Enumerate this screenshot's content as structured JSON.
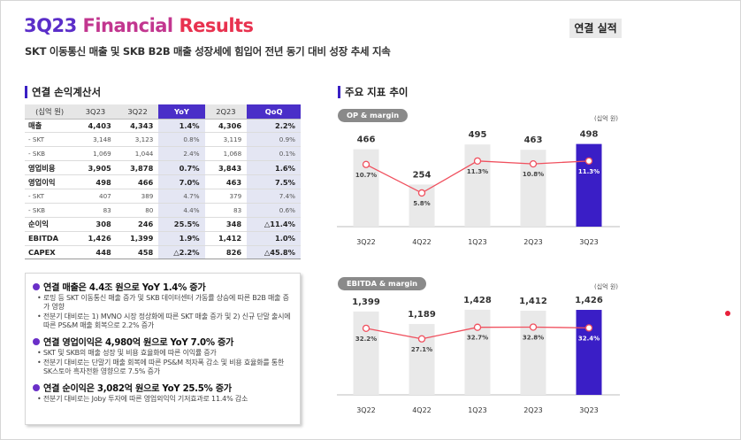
{
  "title": {
    "part1": "3Q23 ",
    "part2": "Financial ",
    "part3": "Results"
  },
  "badge": "연결 실적",
  "subtitle": "SKT 이동통신 매출 및 SKB B2B 매출 성장세에 힘입어 전년 동기 대비 성장 추세 지속",
  "income_statement": {
    "title": "연결 손익계산서",
    "headers": [
      "(십억 원)",
      "3Q23",
      "3Q22",
      "YoY",
      "2Q23",
      "QoQ"
    ],
    "rows": [
      {
        "label": "매출",
        "kind": "main",
        "values": [
          "4,403",
          "4,343",
          "1.4%",
          "4,306",
          "2.2%"
        ]
      },
      {
        "label": " - SKT",
        "kind": "sub",
        "values": [
          "3,148",
          "3,123",
          "0.8%",
          "3,119",
          "0.9%"
        ]
      },
      {
        "label": " - SKB",
        "kind": "sub",
        "values": [
          "1,069",
          "1,044",
          "2.4%",
          "1,068",
          "0.1%"
        ]
      },
      {
        "label": "영업비용",
        "kind": "main",
        "values": [
          "3,905",
          "3,878",
          "0.7%",
          "3,843",
          "1.6%"
        ]
      },
      {
        "label": "영업이익",
        "kind": "main",
        "values": [
          "498",
          "466",
          "7.0%",
          "463",
          "7.5%"
        ]
      },
      {
        "label": " - SKT",
        "kind": "sub",
        "values": [
          "407",
          "389",
          "4.7%",
          "379",
          "7.4%"
        ]
      },
      {
        "label": " - SKB",
        "kind": "sub",
        "values": [
          "83",
          "80",
          "4.4%",
          "83",
          "0.6%"
        ]
      },
      {
        "label": "순이익",
        "kind": "main",
        "values": [
          "308",
          "246",
          "25.5%",
          "348",
          "△11.4%"
        ]
      },
      {
        "label": "EBITDA",
        "kind": "main",
        "values": [
          "1,426",
          "1,399",
          "1.9%",
          "1,412",
          "1.0%"
        ]
      },
      {
        "label": "CAPEX",
        "kind": "main",
        "values": [
          "448",
          "458",
          "△2.2%",
          "826",
          "△45.8%"
        ]
      }
    ]
  },
  "notes": [
    {
      "head": "연결 매출은 4.4조 원으로 YoY 1.4% 증가",
      "bullets": [
        "로밍 등 SKT 이동통신 매출 증가 및 SKB 데이터센터 가동률 상승에 따른 B2B 매출 증가 영향",
        "전분기 대비로는 1) MVNO 시장 정상화에 따른 SKT 매출 증가 및 2) 신규 단말 출시에 따른 PS&M 매출 회복으로 2.2% 증가"
      ]
    },
    {
      "head": "연결 영업이익은 4,980억 원으로 YoY 7.0% 증가",
      "bullets": [
        "SKT 및 SKB의 매출 성장 및 비용 효율화에 따른 이익률 증가",
        "전분기 대비로는 단말기 매출 회복에 따른 PS&M 적자폭 감소 및 비용 효율화를 통한 SK스토아 흑자전환 영향으로 7.5% 증가"
      ]
    },
    {
      "head": "연결 순이익은 3,082억 원으로 YoY 25.5% 증가",
      "bullets": [
        "전분기 대비로는 Joby 투자에 따른 영업외익익 기저효과로 11.4% 감소"
      ]
    }
  ],
  "kpi": {
    "title": "주요 지표 추이"
  },
  "chart_data": [
    {
      "type": "bar",
      "title": "OP & margin",
      "unit": "(십억 원)",
      "categories": [
        "3Q22",
        "4Q22",
        "1Q23",
        "2Q23",
        "3Q23"
      ],
      "series": [
        {
          "values": [
            466,
            254,
            495,
            463,
            498
          ],
          "labels": [
            "466",
            "254",
            "495",
            "463",
            "498"
          ]
        },
        {
          "values": [
            10.7,
            5.8,
            11.3,
            10.8,
            11.3
          ],
          "labels": [
            "10.7%",
            "5.8%",
            "11.3%",
            "10.8%",
            "11.3%"
          ],
          "render": "line"
        }
      ],
      "highlight_index": 4,
      "colors": {
        "bar": "#e9e9e9",
        "highlight": "#3a1ec6",
        "line": "#f0505e"
      },
      "ylim_bar": [
        0,
        560
      ],
      "ylim_line": [
        0,
        16
      ]
    },
    {
      "type": "bar",
      "title": "EBITDA & margin",
      "unit": "(십억 원)",
      "categories": [
        "3Q22",
        "4Q22",
        "1Q23",
        "2Q23",
        "3Q23"
      ],
      "series": [
        {
          "values": [
            1399,
            1189,
            1428,
            1412,
            1426
          ],
          "labels": [
            "1,399",
            "1,189",
            "1,428",
            "1,412",
            "1,426"
          ]
        },
        {
          "values": [
            32.2,
            27.1,
            32.7,
            32.8,
            32.4
          ],
          "labels": [
            "32.2%",
            "27.1%",
            "32.7%",
            "32.8%",
            "32.4%"
          ],
          "render": "line"
        }
      ],
      "highlight_index": 4,
      "colors": {
        "bar": "#e9e9e9",
        "highlight": "#3a1ec6",
        "line": "#f0505e"
      },
      "ylim_bar": [
        0,
        1560
      ],
      "ylim_line": [
        0,
        45
      ]
    }
  ]
}
